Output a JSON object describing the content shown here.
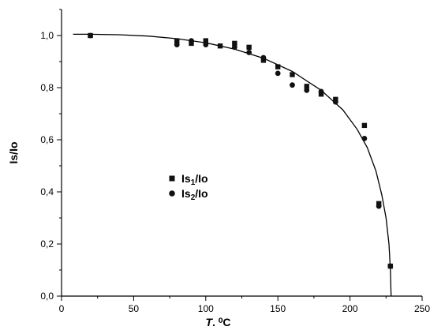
{
  "chart_data": {
    "type": "scatter",
    "xlabel": {
      "italic": "T",
      "rest": ". ⁰C"
    },
    "ylabel": "Is/Io",
    "xlim": [
      0,
      250
    ],
    "ylim": [
      0,
      1.1
    ],
    "x_ticks": [
      0,
      50,
      100,
      150,
      200,
      250
    ],
    "y_ticks": [
      0.0,
      0.2,
      0.4,
      0.6,
      0.8,
      1.0
    ],
    "x_tick_labels": [
      "0",
      "50",
      "100",
      "150",
      "200",
      "250"
    ],
    "y_tick_labels": [
      "0,0",
      "0,2",
      "0,4",
      "0,6",
      "0,8",
      "1,0"
    ],
    "grid": false,
    "legend_position": "center-left",
    "series": [
      {
        "name_base": "Is",
        "name_sub": "1",
        "name_tail": "/Io",
        "marker": "square",
        "points": [
          [
            20,
            1.0
          ],
          [
            80,
            0.98
          ],
          [
            90,
            0.97
          ],
          [
            100,
            0.98
          ],
          [
            110,
            0.96
          ],
          [
            120,
            0.97
          ],
          [
            130,
            0.955
          ],
          [
            140,
            0.905
          ],
          [
            150,
            0.88
          ],
          [
            160,
            0.85
          ],
          [
            170,
            0.805
          ],
          [
            180,
            0.775
          ],
          [
            190,
            0.755
          ],
          [
            210,
            0.655
          ],
          [
            220,
            0.355
          ],
          [
            228,
            0.115
          ]
        ]
      },
      {
        "name_base": "Is",
        "name_sub": "2",
        "name_tail": "/Io",
        "marker": "circle",
        "points": [
          [
            20,
            1.0
          ],
          [
            80,
            0.965
          ],
          [
            90,
            0.98
          ],
          [
            100,
            0.965
          ],
          [
            120,
            0.955
          ],
          [
            130,
            0.935
          ],
          [
            140,
            0.915
          ],
          [
            150,
            0.855
          ],
          [
            160,
            0.81
          ],
          [
            170,
            0.79
          ],
          [
            180,
            0.785
          ],
          [
            190,
            0.745
          ],
          [
            210,
            0.605
          ],
          [
            220,
            0.345
          ],
          [
            228,
            0.115
          ]
        ]
      }
    ],
    "fit_curve": [
      [
        8,
        1.005
      ],
      [
        20,
        1.005
      ],
      [
        40,
        1.003
      ],
      [
        60,
        0.998
      ],
      [
        80,
        0.988
      ],
      [
        100,
        0.972
      ],
      [
        120,
        0.948
      ],
      [
        140,
        0.913
      ],
      [
        160,
        0.862
      ],
      [
        180,
        0.79
      ],
      [
        195,
        0.715
      ],
      [
        205,
        0.64
      ],
      [
        212,
        0.57
      ],
      [
        218,
        0.48
      ],
      [
        222,
        0.39
      ],
      [
        225,
        0.3
      ],
      [
        227,
        0.2
      ],
      [
        228,
        0.1
      ],
      [
        228.5,
        0.0
      ]
    ]
  }
}
